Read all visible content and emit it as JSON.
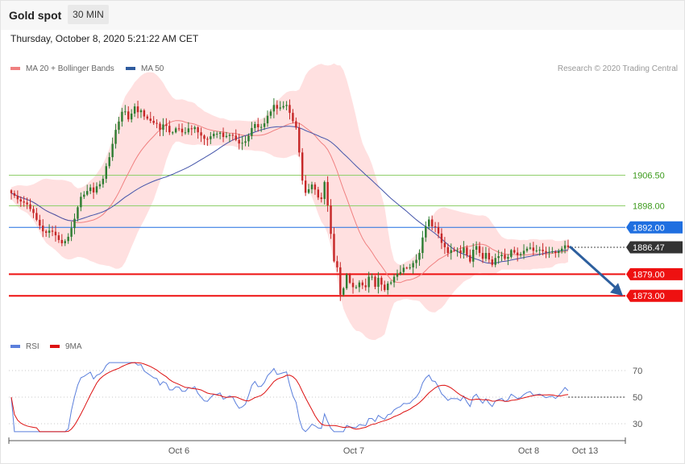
{
  "header": {
    "symbol": "Gold spot",
    "timeframe": "30 MIN",
    "datetime": "Thursday, October 8, 2020 5:21:22 AM CET"
  },
  "legend": {
    "ma20_label": "MA 20 + Bollinger Bands",
    "ma50_label": "MA 50",
    "rsi_label": "RSI",
    "ma9_label": "9MA"
  },
  "credit": "Research © 2020 Trading Central",
  "colors": {
    "candle_up": "#2e7d32",
    "candle_down": "#c62828",
    "bollinger_fill": "#ffd6d6",
    "ma20": "#f08080",
    "ma50": "#4455aa",
    "resistance": "#8fcf6b",
    "pivot": "#1f6fe0",
    "support": "#ee1111",
    "arrow": "#2d5f9e",
    "last_price_bg": "#333333",
    "rsi": "#5b7fdc",
    "rsi_ma": "#dd1111"
  },
  "chart_data": [
    {
      "type": "candlestick",
      "instrument": "Gold spot",
      "timeframe": "30 MIN",
      "y_unit": "USD",
      "ylim": [
        1860,
        1937
      ],
      "x_ticks": [
        "Oct 6",
        "Oct 7",
        "Oct 8",
        "Oct 13"
      ],
      "close_approx": [
        1901.5,
        1900.8,
        1899.8,
        1899.2,
        1898.9,
        1898.4,
        1897.1,
        1896.0,
        1894.1,
        1892.5,
        1890.9,
        1890.5,
        1891.1,
        1890.8,
        1889.8,
        1888.5,
        1887.6,
        1888.2,
        1889.4,
        1891.8,
        1894.4,
        1897.6,
        1900.5,
        1901.1,
        1902.1,
        1903.1,
        1901.7,
        1903.4,
        1904.0,
        1905.5,
        1909.0,
        1911.5,
        1915.2,
        1919.1,
        1921.4,
        1924.1,
        1924.2,
        1922.0,
        1923.6,
        1925.6,
        1924.0,
        1924.5,
        1922.8,
        1922.2,
        1921.6,
        1921.0,
        1920.8,
        1919.1,
        1920.6,
        1920.2,
        1918.4,
        1918.4,
        1919.5,
        1919.4,
        1918.4,
        1918.4,
        1919.5,
        1919.3,
        1919.8,
        1918.4,
        1917.5,
        1916.6,
        1916.5,
        1917.3,
        1918.0,
        1918.0,
        1918.3,
        1917.1,
        1917.4,
        1917.7,
        1917.5,
        1916.3,
        1915.3,
        1915.5,
        1915.9,
        1917.4,
        1919.6,
        1920.7,
        1919.8,
        1919.9,
        1920.9,
        1923.0,
        1924.2,
        1926.0,
        1925.0,
        1925.3,
        1925.7,
        1926.0,
        1923.8,
        1921.5,
        1919.7,
        1912.8,
        1905.0,
        1901.6,
        1902.6,
        1903.9,
        1902.5,
        1900.3,
        1899.9,
        1904.6,
        1898.1,
        1890.2,
        1882.6,
        1880.9,
        1873.3,
        1875.1,
        1878.9,
        1876.6,
        1875.4,
        1875.4,
        1876.7,
        1875.9,
        1875.4,
        1878.3,
        1878.3,
        1875.5,
        1878.0,
        1876.1,
        1874.6,
        1876.4,
        1876.7,
        1878.3,
        1879.1,
        1879.6,
        1880.8,
        1880.7,
        1880.9,
        1882.1,
        1883.0,
        1884.9,
        1889.2,
        1892.3,
        1894.2,
        1892.3,
        1892.1,
        1890.3,
        1887.7,
        1886.5,
        1884.9,
        1885.7,
        1885.6,
        1885.6,
        1884.9,
        1886.4,
        1884.3,
        1882.5,
        1885.8,
        1886.8,
        1884.9,
        1883.3,
        1884.9,
        1883.1,
        1881.6,
        1883.5,
        1884.0,
        1884.4,
        1883.3,
        1883.8,
        1885.7,
        1885.0,
        1884.3,
        1884.6,
        1885.5,
        1886.1,
        1886.4,
        1885.5,
        1885.6,
        1885.8,
        1885.4,
        1885.0,
        1885.2,
        1885.3,
        1884.9,
        1885.4,
        1886.1,
        1887.0,
        1886.5
      ],
      "indicators": [
        "MA 20 + Bollinger Bands",
        "MA 50"
      ],
      "levels": [
        {
          "label": "1906.50",
          "value": 1906.5,
          "kind": "resistance"
        },
        {
          "label": "1898.00",
          "value": 1898.0,
          "kind": "resistance"
        },
        {
          "label": "1892.00",
          "value": 1892.0,
          "kind": "pivot"
        },
        {
          "label": "1886.47",
          "value": 1886.47,
          "kind": "last"
        },
        {
          "label": "1879.00",
          "value": 1879.0,
          "kind": "support"
        },
        {
          "label": "1873.00",
          "value": 1873.0,
          "kind": "support"
        }
      ],
      "forecast_arrow": {
        "from": 1886.5,
        "to": 1873.0
      }
    },
    {
      "type": "line",
      "name": "RSI",
      "ylim": [
        20,
        80
      ],
      "y_ticks": [
        70,
        50,
        30
      ],
      "series": [
        {
          "name": "RSI"
        },
        {
          "name": "9MA"
        }
      ]
    }
  ]
}
